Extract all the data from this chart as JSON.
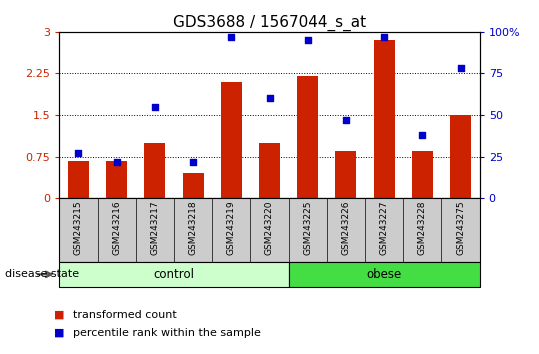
{
  "title": "GDS3688 / 1567044_s_at",
  "samples": [
    "GSM243215",
    "GSM243216",
    "GSM243217",
    "GSM243218",
    "GSM243219",
    "GSM243220",
    "GSM243225",
    "GSM243226",
    "GSM243227",
    "GSM243228",
    "GSM243275"
  ],
  "transformed_count": [
    0.68,
    0.68,
    1.0,
    0.45,
    2.1,
    1.0,
    2.2,
    0.85,
    2.85,
    0.85,
    1.5
  ],
  "percentile_rank": [
    27,
    22,
    55,
    22,
    97,
    60,
    95,
    47,
    97,
    38,
    78
  ],
  "bar_color": "#cc2200",
  "dot_color": "#0000cc",
  "ylim_left": [
    0,
    3
  ],
  "ylim_right": [
    0,
    100
  ],
  "yticks_left": [
    0,
    0.75,
    1.5,
    2.25,
    3
  ],
  "yticks_right": [
    0,
    25,
    50,
    75,
    100
  ],
  "ytick_labels_right": [
    "0",
    "25",
    "50",
    "75",
    "100%"
  ],
  "gridlines": [
    0.75,
    1.5,
    2.25
  ],
  "groups": [
    {
      "label": "control",
      "span": [
        0,
        5
      ],
      "color": "#ccffcc"
    },
    {
      "label": "obese",
      "span": [
        6,
        10
      ],
      "color": "#44dd44"
    }
  ],
  "disease_state_label": "disease state",
  "legend_items": [
    {
      "label": "transformed count",
      "color": "#cc2200"
    },
    {
      "label": "percentile rank within the sample",
      "color": "#0000cc"
    }
  ],
  "bar_color_hex": "#cc2200",
  "dot_color_hex": "#0000cc",
  "xtick_bg": "#cccccc",
  "title_fontsize": 11,
  "tick_fontsize": 8,
  "label_fontsize": 8.5
}
